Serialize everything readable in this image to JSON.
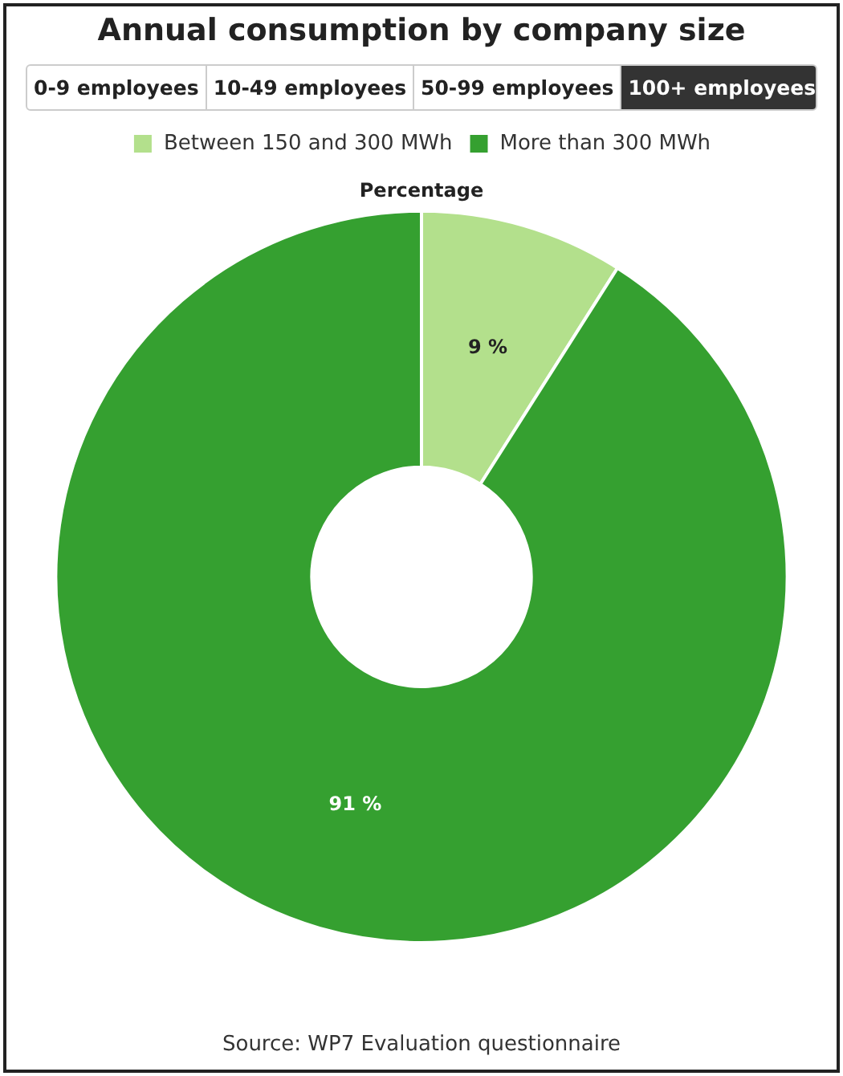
{
  "chart_data": {
    "type": "donut",
    "title": "Annual consumption by company size",
    "subtitle": "Percentage",
    "categories": [
      "Between 150 and 300 MWh",
      "More than 300 MWh"
    ],
    "values": [
      9,
      91
    ],
    "colors": [
      "#b3e08c",
      "#35a030"
    ],
    "value_labels": [
      "9 %",
      "91 %"
    ],
    "legend": "top",
    "annotations": [
      "0-9 employees",
      "10-49 employees",
      "50-99 employees",
      "100+ employees",
      "Source: WP7 Evaluation questionnaire"
    ]
  }
}
